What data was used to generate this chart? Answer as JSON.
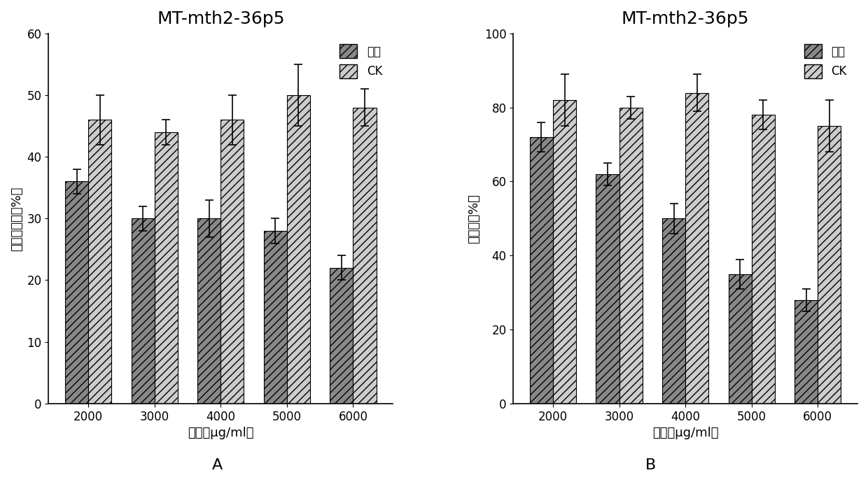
{
  "title": "MT-mth2-36p5",
  "categories": [
    "2000",
    "3000",
    "4000",
    "5000",
    "6000"
  ],
  "xlabel": "浓度（μg/ml）",
  "chart_A": {
    "ylabel": "成虫存活率（%）",
    "treatment_values": [
      36,
      30,
      30,
      28,
      22
    ],
    "treatment_errors": [
      2,
      2,
      3,
      2,
      2
    ],
    "ck_values": [
      46,
      44,
      46,
      50,
      48
    ],
    "ck_errors": [
      4,
      2,
      4,
      5,
      3
    ],
    "ylim": [
      0,
      60
    ],
    "yticks": [
      0,
      10,
      20,
      30,
      40,
      50,
      60
    ]
  },
  "chart_B": {
    "ylabel": "繁殖率（%）",
    "treatment_values": [
      72,
      62,
      50,
      35,
      28
    ],
    "treatment_errors": [
      4,
      3,
      4,
      4,
      3
    ],
    "ck_values": [
      82,
      80,
      84,
      78,
      75
    ],
    "ck_errors": [
      7,
      3,
      5,
      4,
      7
    ],
    "ylim": [
      0,
      100
    ],
    "yticks": [
      0,
      20,
      40,
      60,
      80,
      100
    ]
  },
  "legend_treatment": "处理",
  "legend_ck": "CK",
  "bar_width": 0.35,
  "hatch_treatment": "///",
  "hatch_ck": "///",
  "color_treatment": "#888888",
  "color_ck": "#cccccc",
  "background_color": "#ffffff",
  "label_A": "A",
  "label_B": "B",
  "title_fontsize": 18,
  "axis_fontsize": 13,
  "tick_fontsize": 12,
  "legend_fontsize": 12
}
